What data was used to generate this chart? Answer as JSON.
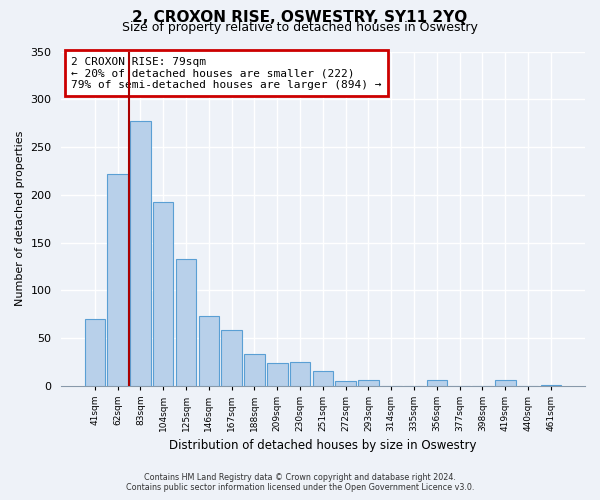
{
  "title": "2, CROXON RISE, OSWESTRY, SY11 2YQ",
  "subtitle": "Size of property relative to detached houses in Oswestry",
  "xlabel": "Distribution of detached houses by size in Oswestry",
  "ylabel": "Number of detached properties",
  "bar_labels": [
    "41sqm",
    "62sqm",
    "83sqm",
    "104sqm",
    "125sqm",
    "146sqm",
    "167sqm",
    "188sqm",
    "209sqm",
    "230sqm",
    "251sqm",
    "272sqm",
    "293sqm",
    "314sqm",
    "335sqm",
    "356sqm",
    "377sqm",
    "398sqm",
    "419sqm",
    "440sqm",
    "461sqm"
  ],
  "bar_values": [
    70,
    222,
    277,
    192,
    133,
    73,
    58,
    33,
    24,
    25,
    15,
    5,
    6,
    0,
    0,
    6,
    0,
    0,
    6,
    0,
    1
  ],
  "bar_color": "#b8d0ea",
  "bar_edge_color": "#5a9fd4",
  "ylim": [
    0,
    350
  ],
  "yticks": [
    0,
    50,
    100,
    150,
    200,
    250,
    300,
    350
  ],
  "property_line_label": "2 CROXON RISE: 79sqm",
  "annotation_line1": "← 20% of detached houses are smaller (222)",
  "annotation_line2": "79% of semi-detached houses are larger (894) →",
  "annotation_box_color": "#ffffff",
  "annotation_box_edge": "#cc0000",
  "footer_line1": "Contains HM Land Registry data © Crown copyright and database right 2024.",
  "footer_line2": "Contains public sector information licensed under the Open Government Licence v3.0.",
  "background_color": "#eef2f8",
  "grid_color": "#ffffff",
  "spine_color": "#8899aa"
}
